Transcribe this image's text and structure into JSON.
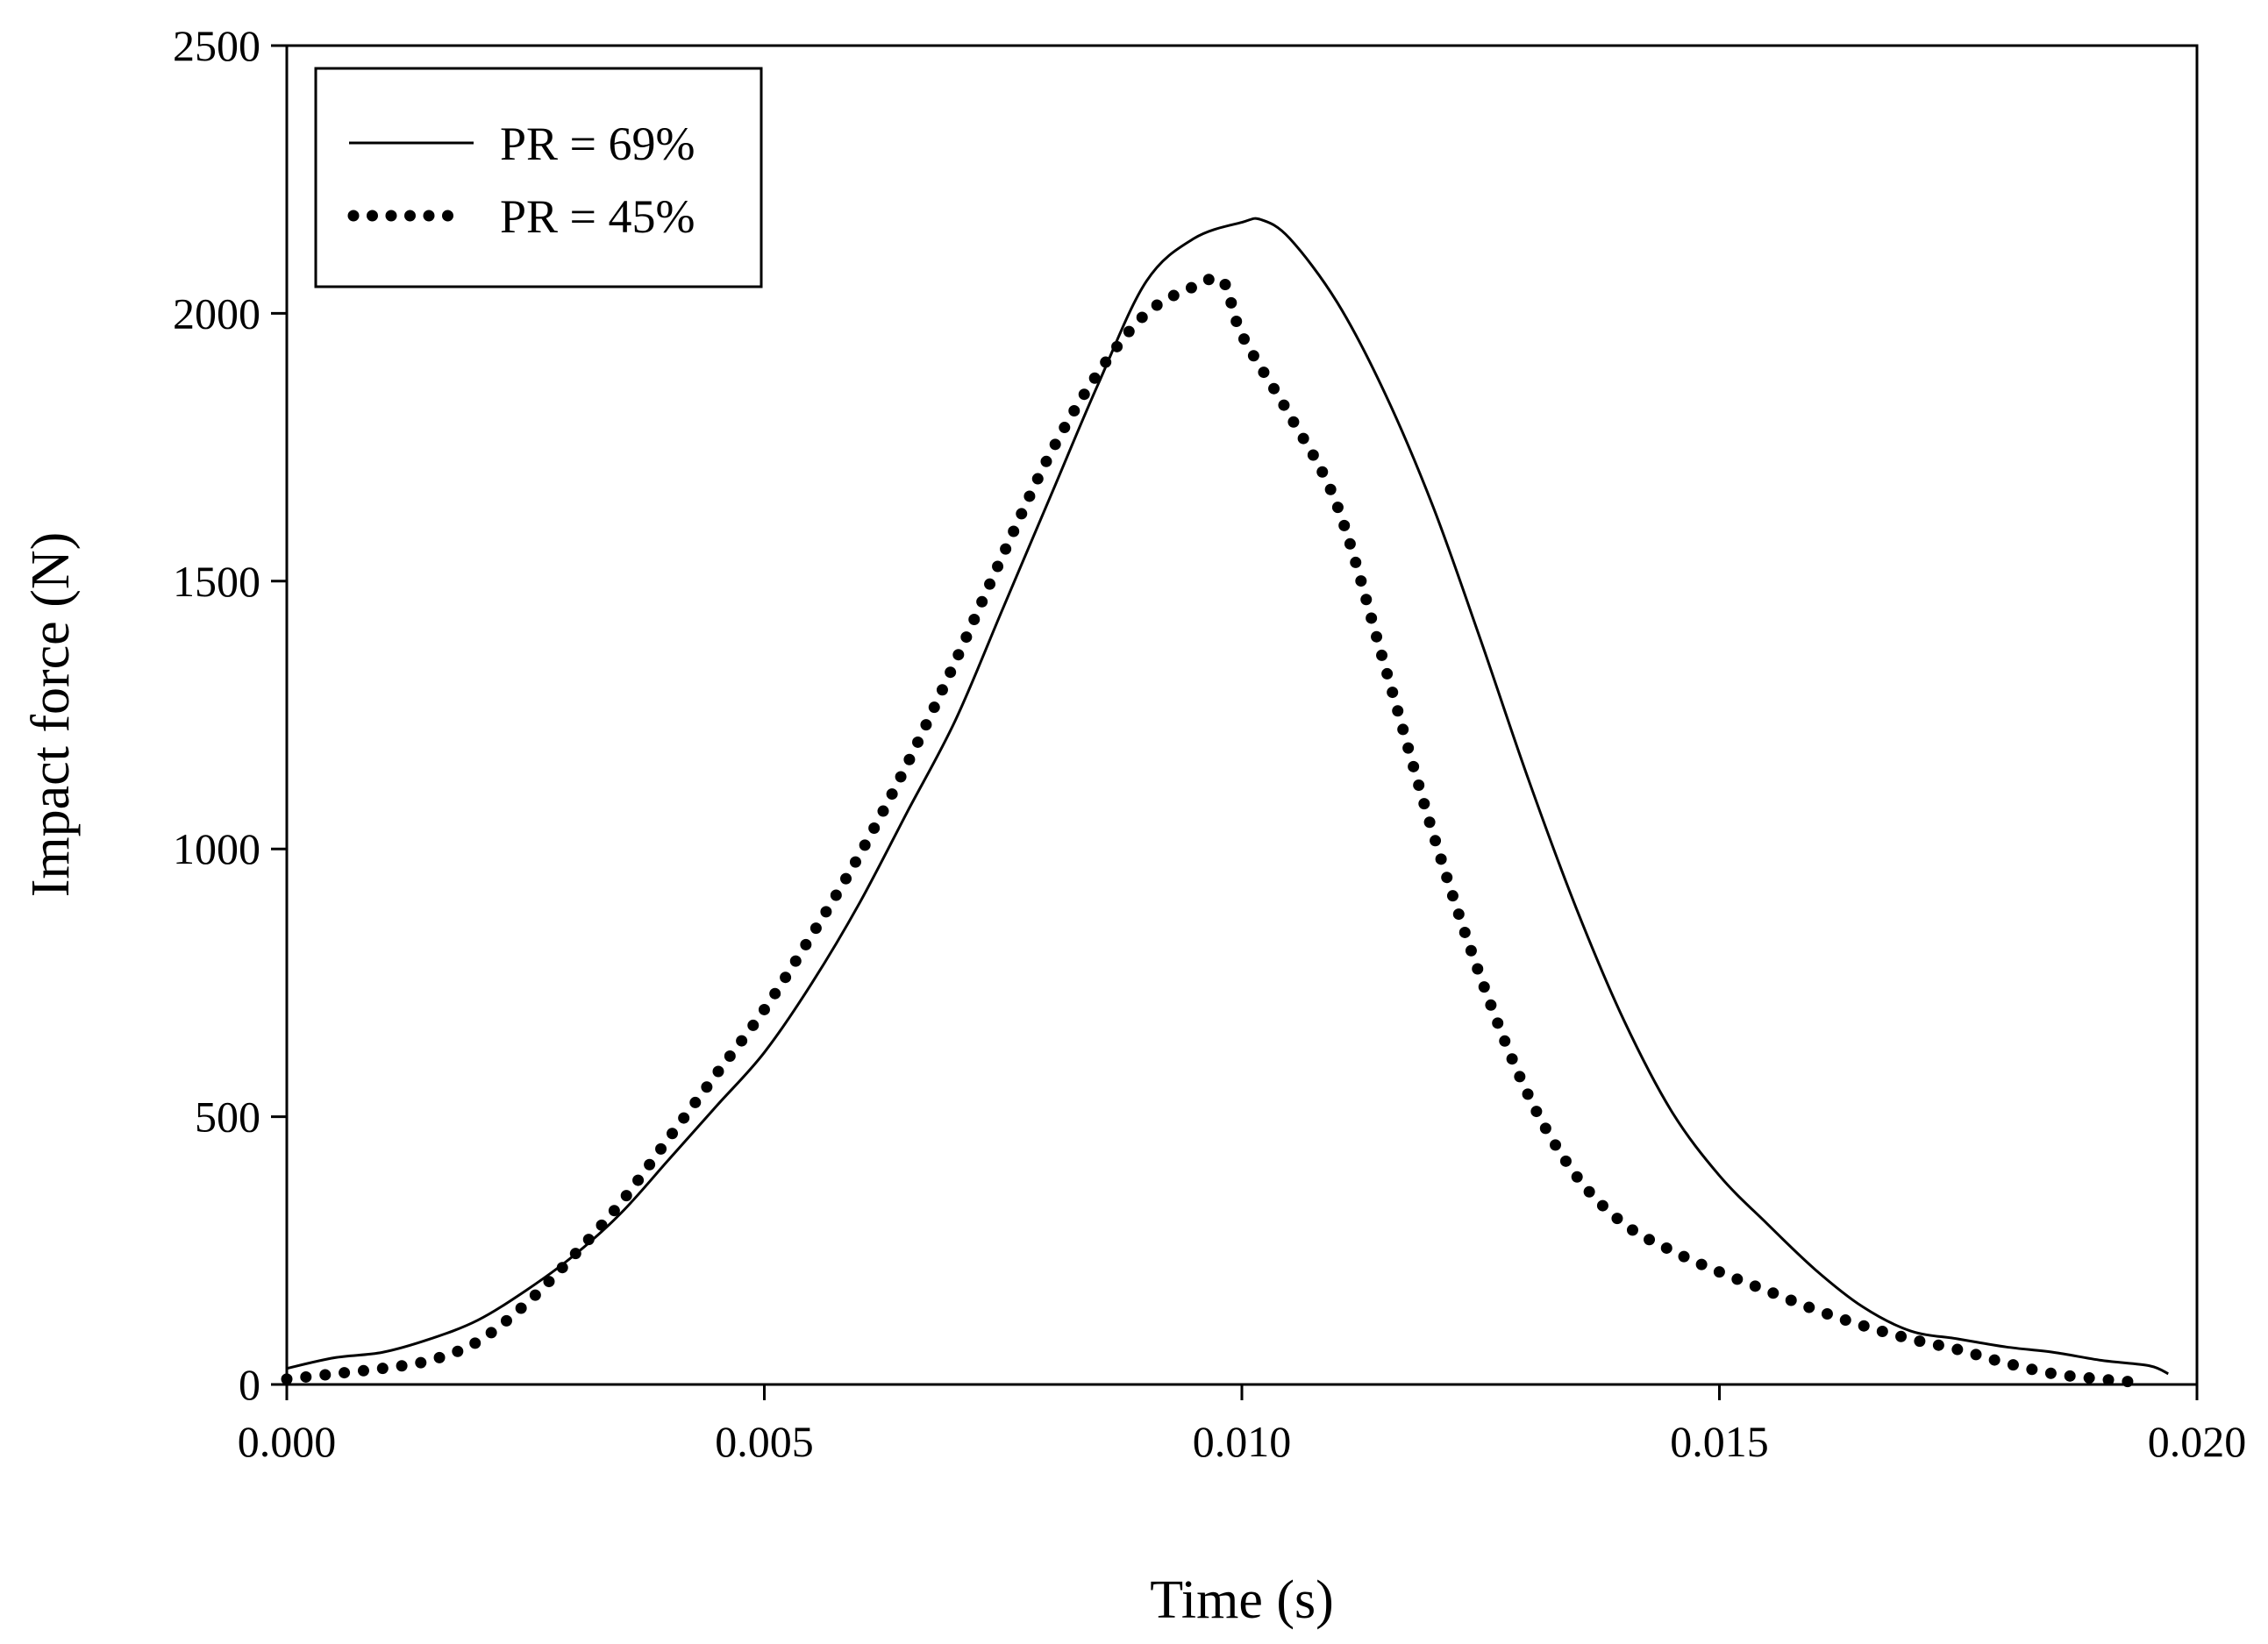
{
  "chart_data": {
    "type": "line",
    "title": "",
    "xlabel": "Time (s)",
    "ylabel": "Impact force (N)",
    "xlim": [
      0,
      0.02
    ],
    "ylim": [
      0,
      2500
    ],
    "x_ticks": [
      0,
      0.005,
      0.01,
      0.015,
      0.02
    ],
    "x_tick_labels": [
      "0.000",
      "0.005",
      "0.010",
      "0.015",
      "0.020"
    ],
    "y_ticks": [
      0,
      500,
      1000,
      1500,
      2000,
      2500
    ],
    "y_tick_labels": [
      "0",
      "500",
      "1000",
      "1500",
      "2000",
      "2500"
    ],
    "grid": false,
    "legend_position": "top-left",
    "series": [
      {
        "name": "PR = 69%",
        "style": "solid",
        "color": "#000000",
        "x": [
          0,
          0.0005,
          0.001,
          0.0015,
          0.002,
          0.0025,
          0.003,
          0.0035,
          0.004,
          0.0045,
          0.005,
          0.0055,
          0.006,
          0.0065,
          0.007,
          0.0075,
          0.008,
          0.0085,
          0.009,
          0.0095,
          0.01,
          0.0102,
          0.0105,
          0.011,
          0.0115,
          0.012,
          0.0125,
          0.013,
          0.0135,
          0.014,
          0.0145,
          0.015,
          0.0155,
          0.016,
          0.0165,
          0.017,
          0.0175,
          0.018,
          0.0185,
          0.019,
          0.0195,
          0.0197
        ],
        "y": [
          30,
          50,
          60,
          85,
          120,
          175,
          240,
          320,
          420,
          520,
          620,
          750,
          900,
          1070,
          1240,
          1450,
          1660,
          1870,
          2060,
          2140,
          2170,
          2175,
          2140,
          2020,
          1850,
          1640,
          1390,
          1130,
          890,
          680,
          510,
          390,
          300,
          215,
          145,
          100,
          85,
          70,
          60,
          45,
          35,
          20
        ]
      },
      {
        "name": "PR = 45%",
        "style": "dotted",
        "color": "#000000",
        "x": [
          0,
          0.0005,
          0.001,
          0.0015,
          0.002,
          0.0025,
          0.003,
          0.0035,
          0.004,
          0.0045,
          0.005,
          0.0055,
          0.006,
          0.0065,
          0.007,
          0.0075,
          0.008,
          0.0085,
          0.009,
          0.0095,
          0.0098,
          0.01,
          0.0105,
          0.011,
          0.0115,
          0.012,
          0.0125,
          0.013,
          0.0135,
          0.014,
          0.0145,
          0.015,
          0.0155,
          0.016,
          0.0165,
          0.017,
          0.0175,
          0.018,
          0.0185,
          0.019,
          0.0193
        ],
        "y": [
          10,
          20,
          30,
          45,
          80,
          150,
          240,
          340,
          460,
          580,
          700,
          840,
          990,
          1160,
          1350,
          1550,
          1740,
          1890,
          2000,
          2050,
          2060,
          1960,
          1810,
          1640,
          1340,
          1030,
          760,
          540,
          390,
          300,
          250,
          210,
          175,
          140,
          110,
          85,
          65,
          40,
          20,
          10,
          5
        ]
      }
    ]
  }
}
